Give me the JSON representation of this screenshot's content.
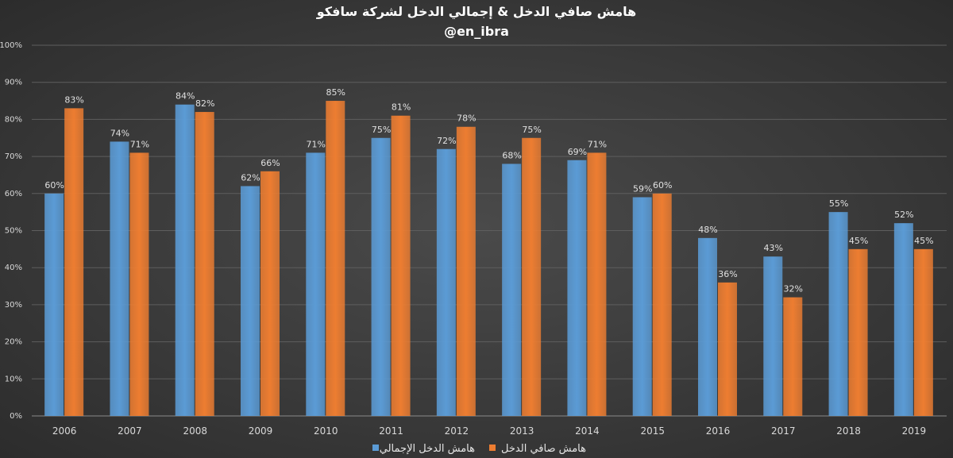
{
  "chart_data": {
    "type": "bar",
    "title": "هامش صافي الدخل & إجمالي الدخل لشركة سافكو",
    "subtitle": "@en_ibra",
    "categories": [
      "2006",
      "2007",
      "2008",
      "2009",
      "2010",
      "2011",
      "2012",
      "2013",
      "2014",
      "2015",
      "2016",
      "2017",
      "2018",
      "2019"
    ],
    "series": [
      {
        "name": "هامش الدخل الإجمالي",
        "color": "#5b9bd5",
        "values": [
          60,
          74,
          84,
          62,
          71,
          75,
          72,
          68,
          69,
          59,
          48,
          43,
          55,
          52
        ],
        "labels": [
          "60%",
          "74%",
          "84%",
          "62%",
          "71%",
          "75%",
          "72%",
          "68%",
          "69%",
          "59%",
          "48%",
          "43%",
          "55%",
          "52%"
        ]
      },
      {
        "name": "هامش صافي الدخل",
        "color": "#ed7d31",
        "values": [
          83,
          71,
          82,
          66,
          85,
          81,
          78,
          75,
          71,
          60,
          36,
          32,
          45,
          45
        ],
        "labels": [
          "83%",
          "71%",
          "82%",
          "66%",
          "85%",
          "81%",
          "78%",
          "75%",
          "71%",
          "60%",
          "36%",
          "32%",
          "45%",
          "45%"
        ]
      }
    ],
    "ylim": [
      0,
      100
    ],
    "yticks": [
      "0%",
      "10%",
      "20%",
      "30%",
      "40%",
      "50%",
      "60%",
      "70%",
      "80%",
      "90%",
      "100%"
    ],
    "xlabel": "",
    "ylabel": "",
    "grid": true,
    "legend": "bottom"
  }
}
